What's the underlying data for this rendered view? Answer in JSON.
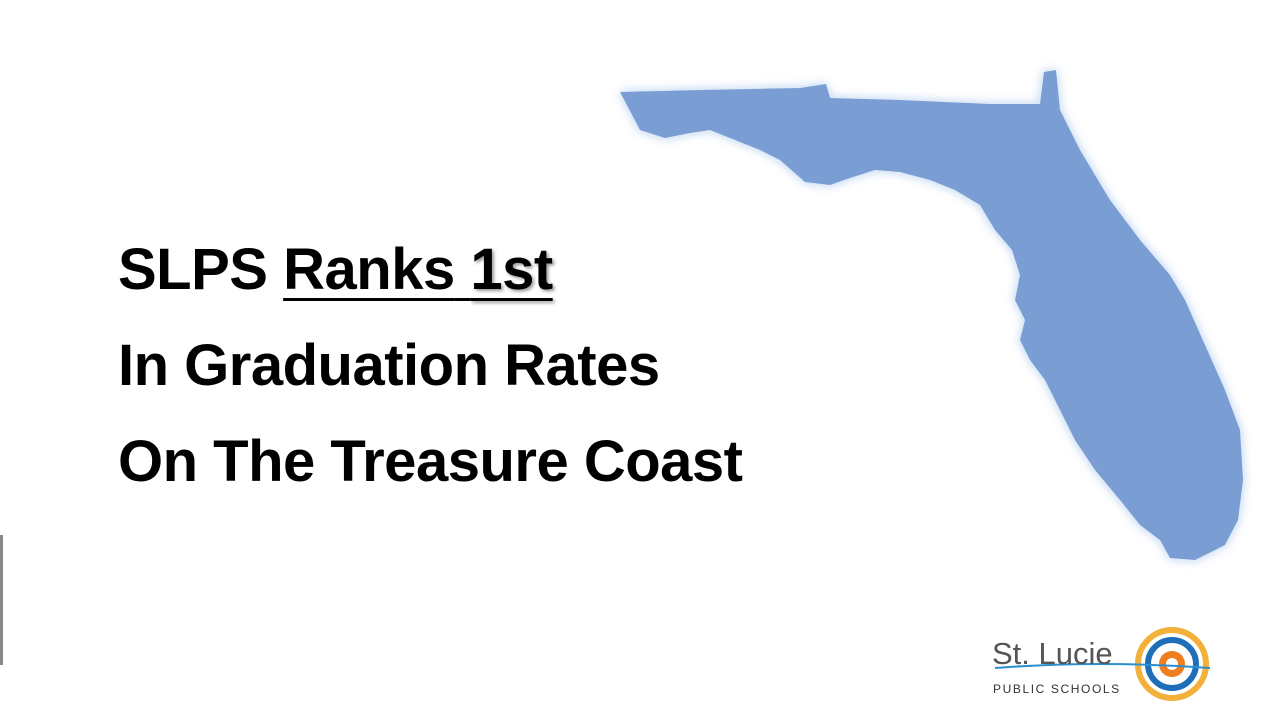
{
  "slide": {
    "headline": {
      "line1": {
        "first": "SLPS",
        "second": "Ranks",
        "third": "1st"
      },
      "line2": "In Graduation Rates",
      "line3": "On The Treasure Coast"
    },
    "logo": {
      "name": "St. Lucie",
      "subtitle": "PUBLIC SCHOOLS"
    }
  }
}
